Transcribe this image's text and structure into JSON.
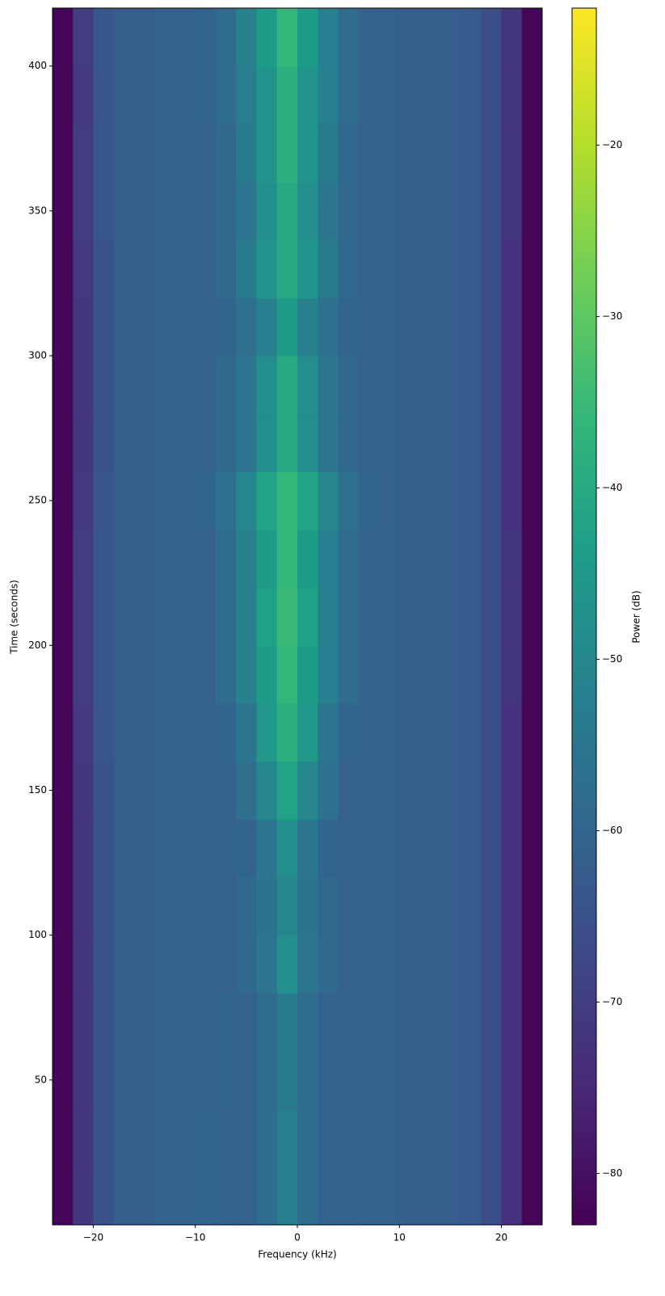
{
  "chart_data": {
    "type": "spectrogram",
    "xlabel": "Frequency (kHz)",
    "ylabel": "Time (seconds)",
    "colorbar_label": "Power (dB)",
    "xlim": [
      -24,
      24
    ],
    "ylim": [
      0,
      420
    ],
    "clim": [
      -83,
      -12
    ],
    "xticks": [
      {
        "value": -20,
        "label": "−20"
      },
      {
        "value": -10,
        "label": "−10"
      },
      0,
      10,
      20
    ],
    "yticks": [
      50,
      100,
      150,
      200,
      250,
      300,
      350,
      400
    ],
    "cticks": [
      {
        "value": -80,
        "label": "−80"
      },
      {
        "value": -70,
        "label": "−70"
      },
      {
        "value": -60,
        "label": "−60"
      },
      {
        "value": -50,
        "label": "−50"
      },
      {
        "value": -40,
        "label": "−40"
      },
      {
        "value": -30,
        "label": "−30"
      },
      {
        "value": -20,
        "label": "−20"
      }
    ],
    "colormap": [
      "#440154",
      "#482878",
      "#3e4989",
      "#31688e",
      "#26828e",
      "#1f9e89",
      "#35b779",
      "#6ece58",
      "#b5de2b",
      "#fde725"
    ],
    "z": [
      [
        -82,
        -72,
        -65,
        -62,
        -62,
        -61,
        -61,
        -60,
        -61,
        -61,
        -58,
        -52,
        -58,
        -61,
        -61,
        -61,
        -61,
        -62,
        -62,
        -62,
        -63,
        -66,
        -73,
        -82
      ],
      [
        -82,
        -72,
        -65,
        -62,
        -62,
        -61,
        -61,
        -60,
        -61,
        -61,
        -58,
        -52,
        -58,
        -61,
        -61,
        -61,
        -61,
        -62,
        -62,
        -62,
        -63,
        -66,
        -73,
        -82
      ],
      [
        -82,
        -72,
        -65,
        -62,
        -62,
        -61,
        -61,
        -61,
        -60,
        -61,
        -58,
        -54,
        -58,
        -61,
        -61,
        -61,
        -61,
        -62,
        -62,
        -62,
        -63,
        -66,
        -73,
        -82
      ],
      [
        -82,
        -72,
        -65,
        -62,
        -62,
        -61,
        -61,
        -61,
        -60,
        -61,
        -58,
        -54,
        -58,
        -61,
        -61,
        -61,
        -61,
        -62,
        -62,
        -62,
        -63,
        -66,
        -73,
        -82
      ],
      [
        -82,
        -72,
        -65,
        -62,
        -62,
        -61,
        -61,
        -61,
        -61,
        -59,
        -55,
        -48,
        -55,
        -59,
        -61,
        -61,
        -61,
        -62,
        -62,
        -62,
        -63,
        -66,
        -73,
        -82
      ],
      [
        -82,
        -72,
        -65,
        -62,
        -62,
        -61,
        -61,
        -61,
        -61,
        -59,
        -56,
        -50,
        -56,
        -59,
        -61,
        -61,
        -61,
        -62,
        -62,
        -62,
        -63,
        -66,
        -73,
        -82
      ],
      [
        -82,
        -72,
        -65,
        -62,
        -62,
        -61,
        -61,
        -61,
        -61,
        -60,
        -55,
        -48,
        -55,
        -60,
        -61,
        -61,
        -61,
        -62,
        -62,
        -62,
        -63,
        -66,
        -73,
        -82
      ],
      [
        -82,
        -72,
        -65,
        -62,
        -62,
        -61,
        -61,
        -61,
        -61,
        -57,
        -50,
        -42,
        -50,
        -57,
        -61,
        -61,
        -61,
        -62,
        -62,
        -62,
        -63,
        -66,
        -73,
        -82
      ],
      [
        -82,
        -71,
        -64,
        -62,
        -62,
        -61,
        -61,
        -61,
        -60,
        -55,
        -45,
        -38,
        -45,
        -55,
        -60,
        -61,
        -61,
        -62,
        -62,
        -62,
        -63,
        -66,
        -73,
        -82
      ],
      [
        -82,
        -70,
        -64,
        -62,
        -62,
        -61,
        -61,
        -61,
        -58,
        -52,
        -44,
        -36,
        -44,
        -52,
        -58,
        -61,
        -61,
        -62,
        -62,
        -62,
        -63,
        -66,
        -72,
        -82
      ],
      [
        -82,
        -70,
        -64,
        -62,
        -62,
        -61,
        -61,
        -61,
        -58,
        -52,
        -43,
        -35,
        -43,
        -52,
        -58,
        -61,
        -61,
        -62,
        -62,
        -62,
        -63,
        -66,
        -72,
        -82
      ],
      [
        -82,
        -70,
        -64,
        -62,
        -62,
        -61,
        -61,
        -61,
        -58,
        -52,
        -44,
        -36,
        -44,
        -52,
        -58,
        -61,
        -61,
        -62,
        -62,
        -62,
        -63,
        -66,
        -72,
        -82
      ],
      [
        -82,
        -71,
        -64,
        -62,
        -62,
        -61,
        -61,
        -60,
        -57,
        -50,
        -42,
        -36,
        -42,
        -50,
        -57,
        -60,
        -61,
        -62,
        -62,
        -62,
        -63,
        -66,
        -73,
        -82
      ],
      [
        -82,
        -72,
        -65,
        -62,
        -62,
        -61,
        -61,
        -61,
        -59,
        -55,
        -48,
        -40,
        -48,
        -55,
        -59,
        -61,
        -61,
        -62,
        -62,
        -62,
        -63,
        -66,
        -73,
        -82
      ],
      [
        -82,
        -72,
        -65,
        -62,
        -62,
        -61,
        -61,
        -61,
        -59,
        -55,
        -48,
        -40,
        -48,
        -55,
        -59,
        -61,
        -61,
        -62,
        -62,
        -62,
        -63,
        -66,
        -73,
        -82
      ],
      [
        -82,
        -72,
        -65,
        -62,
        -62,
        -61,
        -61,
        -61,
        -60,
        -57,
        -52,
        -44,
        -52,
        -57,
        -60,
        -61,
        -61,
        -62,
        -62,
        -62,
        -63,
        -66,
        -73,
        -82
      ],
      [
        -82,
        -71,
        -65,
        -62,
        -62,
        -61,
        -61,
        -61,
        -59,
        -54,
        -46,
        -40,
        -46,
        -54,
        -59,
        -61,
        -61,
        -62,
        -62,
        -62,
        -63,
        -66,
        -73,
        -82
      ],
      [
        -82,
        -70,
        -64,
        -62,
        -62,
        -61,
        -61,
        -61,
        -59,
        -55,
        -48,
        -40,
        -48,
        -55,
        -59,
        -61,
        -61,
        -62,
        -62,
        -62,
        -63,
        -66,
        -72,
        -82
      ],
      [
        -82,
        -70,
        -64,
        -62,
        -62,
        -61,
        -61,
        -61,
        -59,
        -54,
        -46,
        -38,
        -46,
        -54,
        -59,
        -61,
        -61,
        -62,
        -62,
        -62,
        -63,
        -66,
        -72,
        -82
      ],
      [
        -82,
        -71,
        -64,
        -62,
        -62,
        -61,
        -61,
        -60,
        -58,
        -53,
        -46,
        -38,
        -46,
        -53,
        -58,
        -61,
        -61,
        -62,
        -62,
        -62,
        -63,
        -66,
        -72,
        -82
      ],
      [
        -82,
        -70,
        -64,
        -62,
        -62,
        -61,
        -61,
        -60,
        -58,
        -52,
        -44,
        -36,
        -44,
        -52,
        -58,
        -61,
        -61,
        -62,
        -62,
        -62,
        -63,
        -66,
        -72,
        -82
      ]
    ]
  }
}
